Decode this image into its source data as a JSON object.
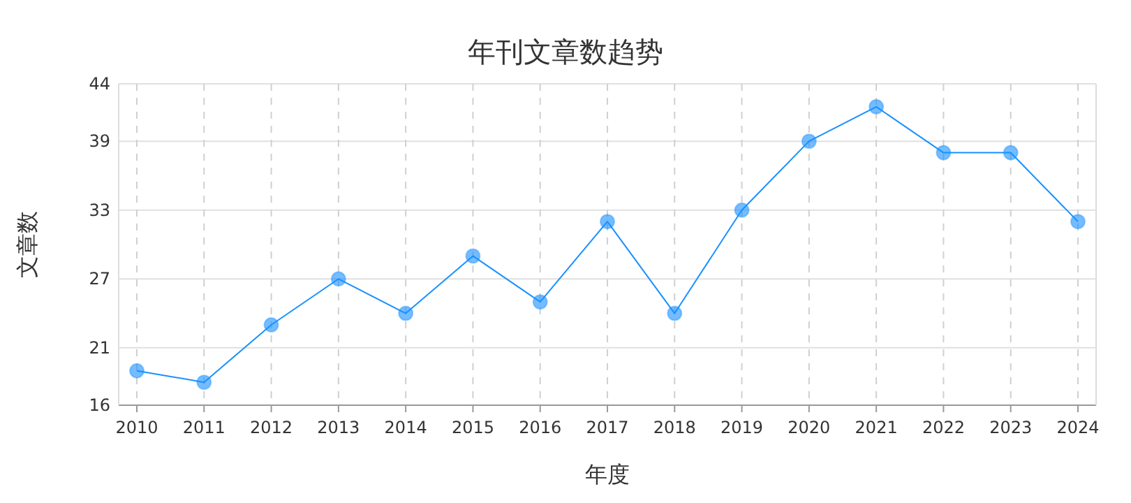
{
  "chart_data": {
    "type": "line",
    "title": "年刊文章数趋势",
    "xlabel": "年度",
    "ylabel": "文章数",
    "categories": [
      "2010",
      "2011",
      "2012",
      "2013",
      "2014",
      "2015",
      "2016",
      "2017",
      "2018",
      "2019",
      "2020",
      "2021",
      "2022",
      "2023",
      "2024"
    ],
    "series": [
      {
        "color": "#1890ff",
        "values": [
          19,
          18,
          23,
          27,
          24,
          29,
          25,
          32,
          24,
          33,
          39,
          42,
          38,
          38,
          32
        ]
      }
    ],
    "ylim": [
      16,
      44
    ],
    "yticks": [
      16,
      21,
      27,
      33,
      39,
      44
    ],
    "grid": true,
    "marker": "circle",
    "line_style": "solid"
  }
}
